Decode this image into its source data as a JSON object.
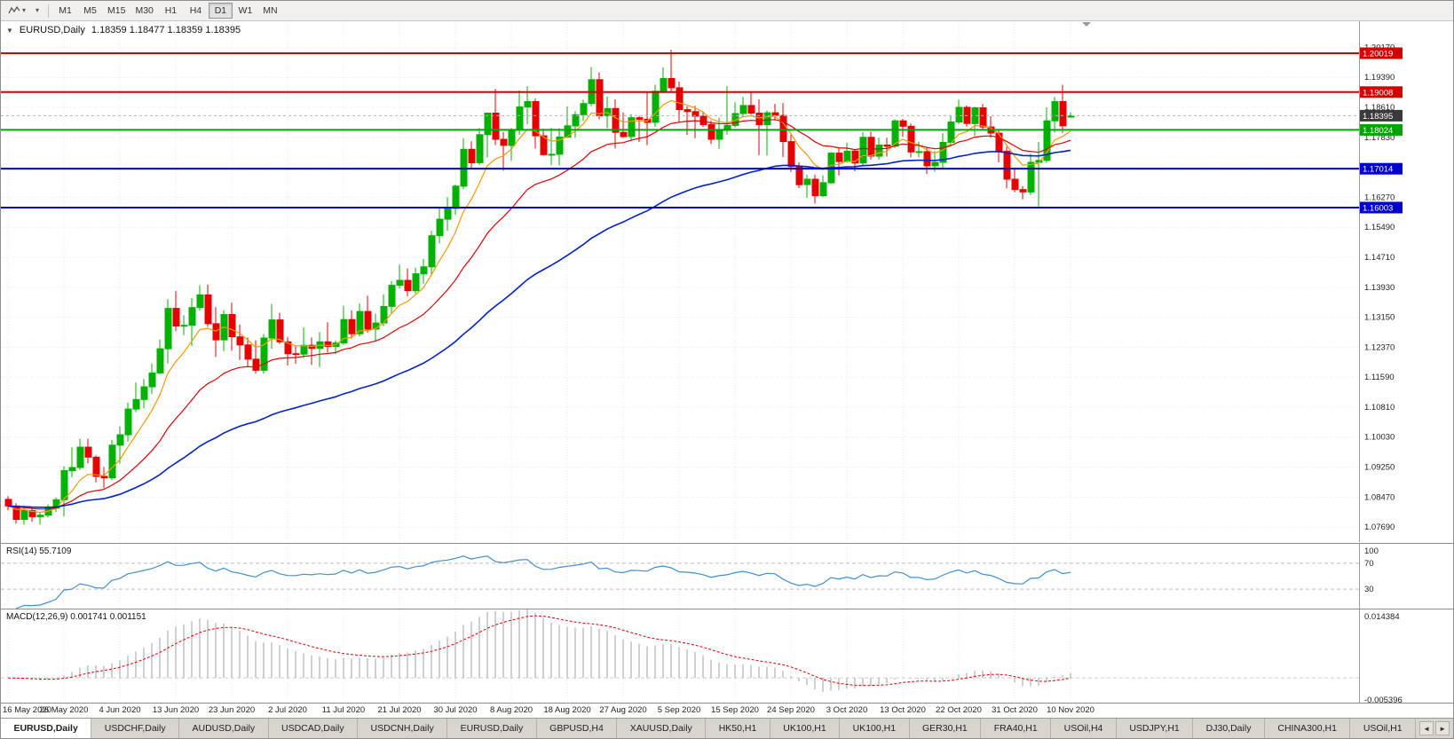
{
  "toolbar": {
    "dropdown_caret": "▾",
    "icons": {
      "chart_type": "zigzag-chart-icon",
      "dropdown": "caret-down-icon",
      "collapse": "triangle-down-icon",
      "tab_scroll_left": "left-arrow-icon",
      "tab_scroll_right": "right-arrow-icon"
    },
    "timeframes": [
      {
        "label": "M1",
        "active": false
      },
      {
        "label": "M5",
        "active": false
      },
      {
        "label": "M15",
        "active": false
      },
      {
        "label": "M30",
        "active": false
      },
      {
        "label": "H1",
        "active": false
      },
      {
        "label": "H4",
        "active": false
      },
      {
        "label": "D1",
        "active": true
      },
      {
        "label": "W1",
        "active": false
      },
      {
        "label": "MN",
        "active": false
      }
    ]
  },
  "chart_data": [
    {
      "type": "candlestick",
      "title": "EURUSD,Daily",
      "collapse_icon": "▼",
      "ohlc_label": "1.18359 1.18477 1.18359 1.18395",
      "bull_color": "#00b200",
      "bear_color": "#e60000",
      "grid_color": "#e7e7e7",
      "y_axis": {
        "min": 1.073,
        "max": 1.2085,
        "ticks": [
          "1.20170",
          "1.19390",
          "1.18610",
          "1.17830",
          "1.17050",
          "1.16270",
          "1.15490",
          "1.14710",
          "1.13930",
          "1.13150",
          "1.12370",
          "1.11590",
          "1.10810",
          "1.10030",
          "1.09250",
          "1.08470",
          "1.07690"
        ]
      },
      "x_labels": [
        "16 May 2020",
        "26 May 2020",
        "4 Jun 2020",
        "13 Jun 2020",
        "23 Jun 2020",
        "2 Jul 2020",
        "11 Jul 2020",
        "21 Jul 2020",
        "30 Jul 2020",
        "8 Aug 2020",
        "18 Aug 2020",
        "27 Aug 2020",
        "5 Sep 2020",
        "15 Sep 2020",
        "24 Sep 2020",
        "3 Oct 2020",
        "13 Oct 2020",
        "22 Oct 2020",
        "31 Oct 2020",
        "10 Nov 2020"
      ],
      "x_label_bar_indices": [
        0,
        7,
        14,
        21,
        28,
        35,
        42,
        49,
        56,
        63,
        70,
        77,
        84,
        91,
        98,
        105,
        112,
        119,
        126,
        133
      ],
      "moving_averages": [
        {
          "period": 7,
          "color": "#f59a00",
          "width": 1.2
        },
        {
          "period": 20,
          "color": "#e00000",
          "width": 1.2
        },
        {
          "period": 52,
          "color": "#0022cc",
          "width": 1.6
        }
      ],
      "hlines": [
        {
          "price": 1.20019,
          "label": "1.20019",
          "color": "#d40000"
        },
        {
          "price": 1.19008,
          "label": "1.19008",
          "color": "#d40000"
        },
        {
          "price": 1.18024,
          "label": "1.18024",
          "color": "#00a400"
        },
        {
          "price": 1.17014,
          "label": "1.17014",
          "color": "#0000cd"
        },
        {
          "price": 1.16003,
          "label": "1.16003",
          "color": "#0000cd"
        }
      ],
      "current_price": {
        "value": 1.18395,
        "label": "1.18395",
        "color": "#3a3a3a"
      },
      "candles": [
        [
          1.0841,
          1.0849,
          1.0813,
          1.0824
        ],
        [
          1.0824,
          1.0831,
          1.0778,
          1.0789
        ],
        [
          1.0789,
          1.0822,
          1.0775,
          1.0812
        ],
        [
          1.0812,
          1.082,
          1.0783,
          1.0796
        ],
        [
          1.0796,
          1.0808,
          1.0776,
          1.08
        ],
        [
          1.08,
          1.0828,
          1.0794,
          1.0818
        ],
        [
          1.0818,
          1.0846,
          1.0808,
          1.084
        ],
        [
          1.084,
          1.0927,
          1.0797,
          1.0916
        ],
        [
          1.0916,
          1.0976,
          1.0899,
          1.0924
        ],
        [
          1.0924,
          1.0999,
          1.0918,
          1.0977
        ],
        [
          1.0977,
          1.0999,
          1.0935,
          1.0951
        ],
        [
          1.0951,
          1.0955,
          1.0885,
          1.0901
        ],
        [
          1.0901,
          1.0925,
          1.087,
          1.0897
        ],
        [
          1.0897,
          1.0996,
          1.0891,
          1.0982
        ],
        [
          1.0982,
          1.1031,
          1.0934,
          1.1009
        ],
        [
          1.1009,
          1.1093,
          1.0991,
          1.1076
        ],
        [
          1.1076,
          1.1145,
          1.1068,
          1.1101
        ],
        [
          1.1101,
          1.1154,
          1.1078,
          1.1134
        ],
        [
          1.1134,
          1.1195,
          1.1115,
          1.117
        ],
        [
          1.117,
          1.1257,
          1.1167,
          1.1233
        ],
        [
          1.1233,
          1.1362,
          1.1195,
          1.1338
        ],
        [
          1.1338,
          1.1383,
          1.1279,
          1.1292
        ],
        [
          1.1292,
          1.132,
          1.1268,
          1.1294
        ],
        [
          1.1294,
          1.1365,
          1.124,
          1.134
        ],
        [
          1.134,
          1.1398,
          1.1332,
          1.1373
        ],
        [
          1.1373,
          1.14,
          1.129,
          1.1298
        ],
        [
          1.1298,
          1.1341,
          1.1212,
          1.1256
        ],
        [
          1.1256,
          1.1333,
          1.1227,
          1.1322
        ],
        [
          1.1322,
          1.1353,
          1.1228,
          1.1264
        ],
        [
          1.1264,
          1.1296,
          1.1204,
          1.1243
        ],
        [
          1.1243,
          1.1262,
          1.1186,
          1.1206
        ],
        [
          1.1206,
          1.1255,
          1.1168,
          1.1177
        ],
        [
          1.1177,
          1.1271,
          1.1168,
          1.1261
        ],
        [
          1.1261,
          1.1349,
          1.1233,
          1.1308
        ],
        [
          1.1308,
          1.1326,
          1.1245,
          1.1251
        ],
        [
          1.1251,
          1.1264,
          1.119,
          1.122
        ],
        [
          1.122,
          1.124,
          1.1194,
          1.1219
        ],
        [
          1.1219,
          1.1288,
          1.1209,
          1.1242
        ],
        [
          1.1242,
          1.1262,
          1.1191,
          1.1234
        ],
        [
          1.1234,
          1.1276,
          1.1185,
          1.1251
        ],
        [
          1.1251,
          1.1302,
          1.1223,
          1.1239
        ],
        [
          1.1239,
          1.1255,
          1.1219,
          1.1248
        ],
        [
          1.1248,
          1.1345,
          1.1243,
          1.1309
        ],
        [
          1.1309,
          1.1333,
          1.1259,
          1.1272
        ],
        [
          1.1272,
          1.1351,
          1.1265,
          1.133
        ],
        [
          1.133,
          1.1371,
          1.1275,
          1.1284
        ],
        [
          1.1284,
          1.1324,
          1.1254,
          1.13
        ],
        [
          1.13,
          1.1375,
          1.1292,
          1.1343
        ],
        [
          1.1343,
          1.1409,
          1.1325,
          1.1398
        ],
        [
          1.1398,
          1.1452,
          1.139,
          1.1411
        ],
        [
          1.1411,
          1.1442,
          1.137,
          1.1384
        ],
        [
          1.1384,
          1.1444,
          1.1377,
          1.1428
        ],
        [
          1.1428,
          1.1467,
          1.1402,
          1.1446
        ],
        [
          1.1446,
          1.154,
          1.1423,
          1.1527
        ],
        [
          1.1527,
          1.1601,
          1.1507,
          1.157
        ],
        [
          1.157,
          1.1627,
          1.154,
          1.1598
        ],
        [
          1.1598,
          1.166,
          1.1581,
          1.1656
        ],
        [
          1.1656,
          1.1781,
          1.1648,
          1.1752
        ],
        [
          1.1752,
          1.1773,
          1.17,
          1.1717
        ],
        [
          1.1717,
          1.1807,
          1.1712,
          1.179
        ],
        [
          1.179,
          1.1848,
          1.1731,
          1.1846
        ],
        [
          1.1846,
          1.1909,
          1.1763,
          1.1778
        ],
        [
          1.1778,
          1.1797,
          1.1696,
          1.1762
        ],
        [
          1.1762,
          1.1807,
          1.1722,
          1.1803
        ],
        [
          1.1803,
          1.1905,
          1.179,
          1.1862
        ],
        [
          1.1862,
          1.1916,
          1.1817,
          1.1876
        ],
        [
          1.1876,
          1.1884,
          1.1754,
          1.1787
        ],
        [
          1.1787,
          1.1805,
          1.1736,
          1.1738
        ],
        [
          1.1738,
          1.1808,
          1.1711,
          1.1739
        ],
        [
          1.1739,
          1.1807,
          1.171,
          1.1784
        ],
        [
          1.1784,
          1.1864,
          1.1781,
          1.1813
        ],
        [
          1.1813,
          1.1851,
          1.1782,
          1.1842
        ],
        [
          1.1842,
          1.1881,
          1.1826,
          1.1871
        ],
        [
          1.1871,
          1.1966,
          1.1864,
          1.1933
        ],
        [
          1.1933,
          1.1952,
          1.183,
          1.1839
        ],
        [
          1.1839,
          1.1889,
          1.1807,
          1.1858
        ],
        [
          1.1858,
          1.1882,
          1.1754,
          1.1796
        ],
        [
          1.1796,
          1.1848,
          1.1782,
          1.1785
        ],
        [
          1.1785,
          1.1843,
          1.1774,
          1.1834
        ],
        [
          1.1834,
          1.1839,
          1.1771,
          1.183
        ],
        [
          1.183,
          1.1902,
          1.1763,
          1.1822
        ],
        [
          1.1822,
          1.192,
          1.181,
          1.1903
        ],
        [
          1.1903,
          1.1965,
          1.1898,
          1.1936
        ],
        [
          1.1936,
          1.2011,
          1.1901,
          1.1912
        ],
        [
          1.1912,
          1.1928,
          1.1823,
          1.1855
        ],
        [
          1.1855,
          1.1864,
          1.1789,
          1.185
        ],
        [
          1.185,
          1.1865,
          1.1781,
          1.1838
        ],
        [
          1.1838,
          1.1848,
          1.181,
          1.1816
        ],
        [
          1.1816,
          1.1827,
          1.1766,
          1.1778
        ],
        [
          1.1778,
          1.1834,
          1.1753,
          1.1801
        ],
        [
          1.1801,
          1.1917,
          1.179,
          1.1814
        ],
        [
          1.1814,
          1.1874,
          1.1809,
          1.1845
        ],
        [
          1.1845,
          1.1888,
          1.1839,
          1.1866
        ],
        [
          1.1866,
          1.19,
          1.1842,
          1.1846
        ],
        [
          1.1846,
          1.1882,
          1.1737,
          1.1816
        ],
        [
          1.1816,
          1.1853,
          1.1736,
          1.1847
        ],
        [
          1.1847,
          1.187,
          1.1827,
          1.184
        ],
        [
          1.184,
          1.1872,
          1.1732,
          1.1772
        ],
        [
          1.1772,
          1.179,
          1.1693,
          1.1707
        ],
        [
          1.1707,
          1.1718,
          1.1651,
          1.166
        ],
        [
          1.166,
          1.1686,
          1.1626,
          1.1674
        ],
        [
          1.1674,
          1.1686,
          1.1611,
          1.1631
        ],
        [
          1.1631,
          1.1684,
          1.1628,
          1.1665
        ],
        [
          1.1665,
          1.1745,
          1.1662,
          1.1742
        ],
        [
          1.1742,
          1.1754,
          1.1684,
          1.172
        ],
        [
          1.172,
          1.1769,
          1.1717,
          1.1747
        ],
        [
          1.1747,
          1.1751,
          1.1695,
          1.1716
        ],
        [
          1.1716,
          1.1797,
          1.1708,
          1.1783
        ],
        [
          1.1783,
          1.1798,
          1.1725,
          1.1734
        ],
        [
          1.1734,
          1.1782,
          1.1725,
          1.1763
        ],
        [
          1.1763,
          1.1782,
          1.1733,
          1.176
        ],
        [
          1.176,
          1.183,
          1.1755,
          1.1826
        ],
        [
          1.1826,
          1.1831,
          1.1785,
          1.1812
        ],
        [
          1.1812,
          1.1819,
          1.1731,
          1.1745
        ],
        [
          1.1745,
          1.1772,
          1.1731,
          1.1746
        ],
        [
          1.1746,
          1.1758,
          1.1688,
          1.1709
        ],
        [
          1.1709,
          1.1747,
          1.1694,
          1.1718
        ],
        [
          1.1718,
          1.1794,
          1.1703,
          1.177
        ],
        [
          1.177,
          1.184,
          1.176,
          1.1823
        ],
        [
          1.1823,
          1.1881,
          1.1817,
          1.1861
        ],
        [
          1.1861,
          1.1866,
          1.1811,
          1.1819
        ],
        [
          1.1819,
          1.1863,
          1.1787,
          1.186
        ],
        [
          1.186,
          1.187,
          1.1803,
          1.181
        ],
        [
          1.181,
          1.1838,
          1.1782,
          1.1794
        ],
        [
          1.1794,
          1.18,
          1.1718,
          1.1747
        ],
        [
          1.1747,
          1.1759,
          1.165,
          1.1674
        ],
        [
          1.1674,
          1.1704,
          1.164,
          1.1647
        ],
        [
          1.1647,
          1.1656,
          1.1622,
          1.1641
        ],
        [
          1.1641,
          1.174,
          1.1633,
          1.1718
        ],
        [
          1.1718,
          1.1771,
          1.1603,
          1.1723
        ],
        [
          1.1723,
          1.1861,
          1.1717,
          1.1826
        ],
        [
          1.1826,
          1.1888,
          1.1795,
          1.1876
        ],
        [
          1.1876,
          1.192,
          1.1795,
          1.1813
        ],
        [
          1.18359,
          1.18477,
          1.18359,
          1.18395
        ]
      ]
    },
    {
      "type": "line",
      "name": "RSI",
      "label": "RSI(14) 55.7109",
      "period": 14,
      "range": [
        0,
        100
      ],
      "levels": [
        70,
        30
      ],
      "y_ticks": [
        "100",
        "70",
        "30"
      ],
      "color": "#3f8fd2",
      "level_color": "#d2b4b4"
    },
    {
      "type": "macd",
      "name": "MACD",
      "label": "MACD(12,26,9) 0.001741 0.001151",
      "fast": 12,
      "slow": 26,
      "signal_period": 9,
      "range": [
        -0.005396,
        0.014384
      ],
      "y_ticks": [
        "0.014384",
        "-0.005396"
      ],
      "histogram_color": "#a2a2a2",
      "signal_color": "#e00000",
      "zero_line_color": "#cccccc"
    }
  ],
  "tabs": {
    "scroll_left_icon": "◄",
    "scroll_right_icon": "►",
    "items": [
      {
        "label": "EURUSD,Daily",
        "active": true
      },
      {
        "label": "USDCHF,Daily",
        "active": false
      },
      {
        "label": "AUDUSD,Daily",
        "active": false
      },
      {
        "label": "USDCAD,Daily",
        "active": false
      },
      {
        "label": "USDCNH,Daily",
        "active": false
      },
      {
        "label": "EURUSD,Daily",
        "active": false
      },
      {
        "label": "GBPUSD,H4",
        "active": false
      },
      {
        "label": "XAUUSD,Daily",
        "active": false
      },
      {
        "label": "HK50,H1",
        "active": false
      },
      {
        "label": "UK100,H1",
        "active": false
      },
      {
        "label": "UK100,H1",
        "active": false
      },
      {
        "label": "GER30,H1",
        "active": false
      },
      {
        "label": "FRA40,H1",
        "active": false
      },
      {
        "label": "USOil,H4",
        "active": false
      },
      {
        "label": "USDJPY,H1",
        "active": false
      },
      {
        "label": "DJ30,Daily",
        "active": false
      },
      {
        "label": "CHINA300,H1",
        "active": false
      },
      {
        "label": "USOil,H1",
        "active": false
      }
    ]
  }
}
